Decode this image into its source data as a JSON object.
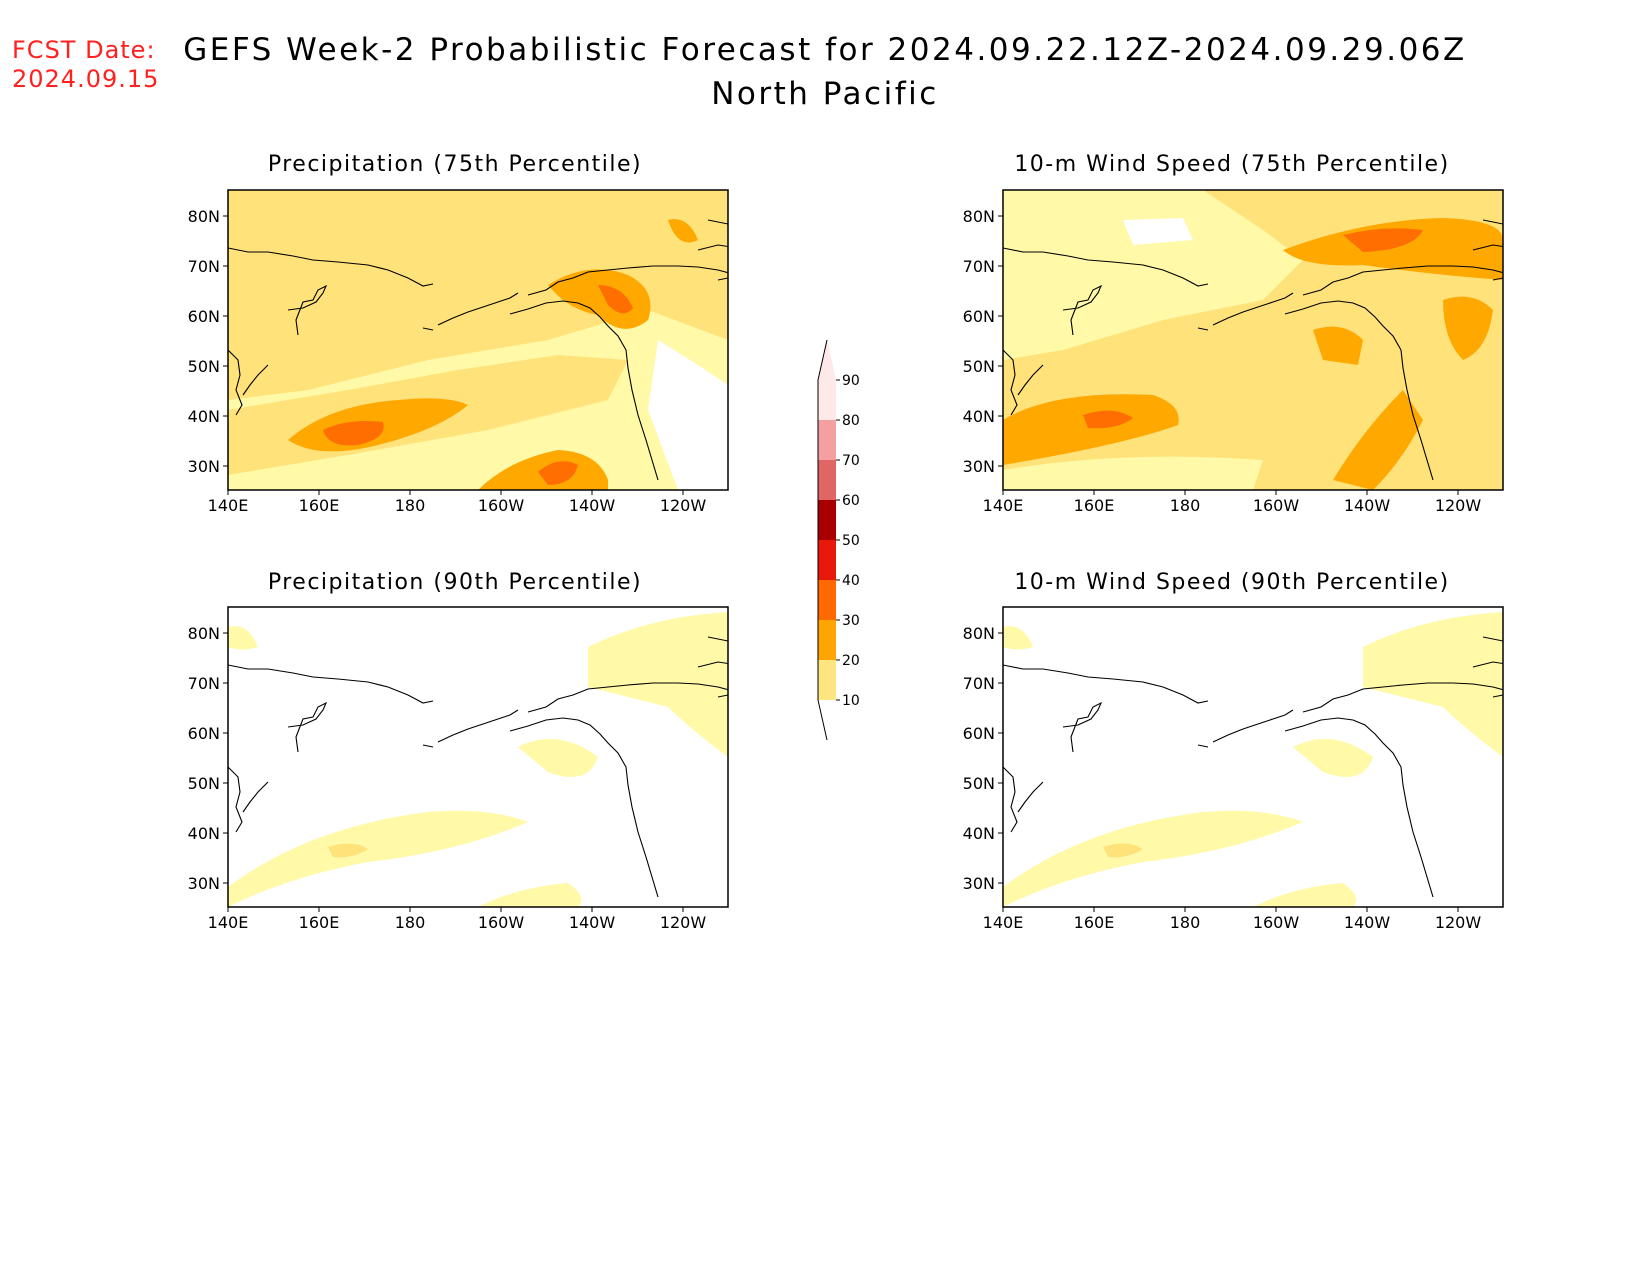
{
  "header": {
    "fcst_label": "FCST Date:",
    "fcst_date": "2024.09.15",
    "title": "GEFS Week-2 Probabilistic Forecast for 2024.09.22.12Z-2024.09.29.06Z",
    "region": "North Pacific"
  },
  "axes": {
    "x_ticks": [
      "140E",
      "160E",
      "180",
      "160W",
      "140W",
      "120W"
    ],
    "y_ticks": [
      "80N",
      "70N",
      "60N",
      "50N",
      "40N",
      "30N"
    ]
  },
  "panels": [
    {
      "id": "precip75",
      "title": "Precipitation (75th Percentile)",
      "intensity": "medium"
    },
    {
      "id": "wind75",
      "title": "10-m Wind Speed (75th Percentile)",
      "intensity": "high"
    },
    {
      "id": "precip90",
      "title": "Precipitation (90th Percentile)",
      "intensity": "low"
    },
    {
      "id": "wind90",
      "title": "10-m Wind Speed (90th Percentile)",
      "intensity": "low"
    }
  ],
  "colorbar": {
    "levels": [
      "10",
      "20",
      "30",
      "40",
      "50",
      "60",
      "70",
      "80",
      "90"
    ],
    "colors": [
      "#fff9a8",
      "#ffe57f",
      "#ffa400",
      "#ff6a00",
      "#e8180a",
      "#a80000",
      "#e06666",
      "#f4a0a0",
      "#ffe8e8"
    ]
  },
  "colors": {
    "c10": "#fff9a8",
    "c20": "#ffe27a",
    "c30": "#ffa800",
    "c40": "#ff6e00",
    "c50": "#e81808",
    "text_red": "#ff2020"
  }
}
